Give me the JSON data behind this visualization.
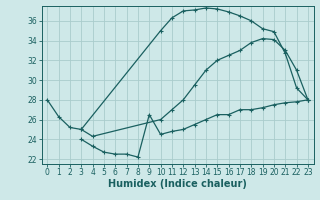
{
  "bg_color": "#cee8e8",
  "grid_color": "#aacccc",
  "line_color": "#1a6060",
  "marker": "+",
  "markersize": 3.5,
  "linewidth": 0.9,
  "xlabel": "Humidex (Indice chaleur)",
  "xlabel_fontsize": 7,
  "tick_fontsize": 5.5,
  "ylim": [
    21.5,
    37.5
  ],
  "xlim": [
    -0.5,
    23.5
  ],
  "yticks": [
    22,
    24,
    26,
    28,
    30,
    32,
    34,
    36
  ],
  "xticks": [
    0,
    1,
    2,
    3,
    4,
    5,
    6,
    7,
    8,
    9,
    10,
    11,
    12,
    13,
    14,
    15,
    16,
    17,
    18,
    19,
    20,
    21,
    22,
    23
  ],
  "curve_top": {
    "x": [
      0,
      1,
      2,
      3,
      10,
      11,
      12,
      13,
      14,
      15,
      16,
      17,
      18,
      19,
      20,
      21,
      22,
      23
    ],
    "y": [
      28.0,
      26.3,
      25.2,
      25.0,
      35.0,
      36.3,
      37.0,
      37.1,
      37.3,
      37.2,
      36.9,
      36.5,
      36.0,
      35.2,
      34.9,
      32.7,
      29.2,
      28.0
    ]
  },
  "curve_mid": {
    "x": [
      3,
      4,
      10,
      11,
      12,
      13,
      14,
      15,
      16,
      17,
      18,
      19,
      20,
      21,
      22,
      23
    ],
    "y": [
      25.0,
      24.3,
      26.0,
      27.0,
      28.0,
      29.5,
      31.0,
      32.0,
      32.5,
      33.0,
      33.8,
      34.2,
      34.1,
      33.0,
      31.0,
      28.0
    ]
  },
  "curve_bot": {
    "x": [
      3,
      4,
      5,
      6,
      7,
      8,
      9,
      10,
      11,
      12,
      13,
      14,
      15,
      16,
      17,
      18,
      19,
      20,
      21,
      22,
      23
    ],
    "y": [
      24.0,
      23.3,
      22.7,
      22.5,
      22.5,
      22.2,
      26.5,
      24.5,
      24.8,
      25.0,
      25.5,
      26.0,
      26.5,
      26.5,
      27.0,
      27.0,
      27.2,
      27.5,
      27.7,
      27.8,
      28.0
    ]
  }
}
